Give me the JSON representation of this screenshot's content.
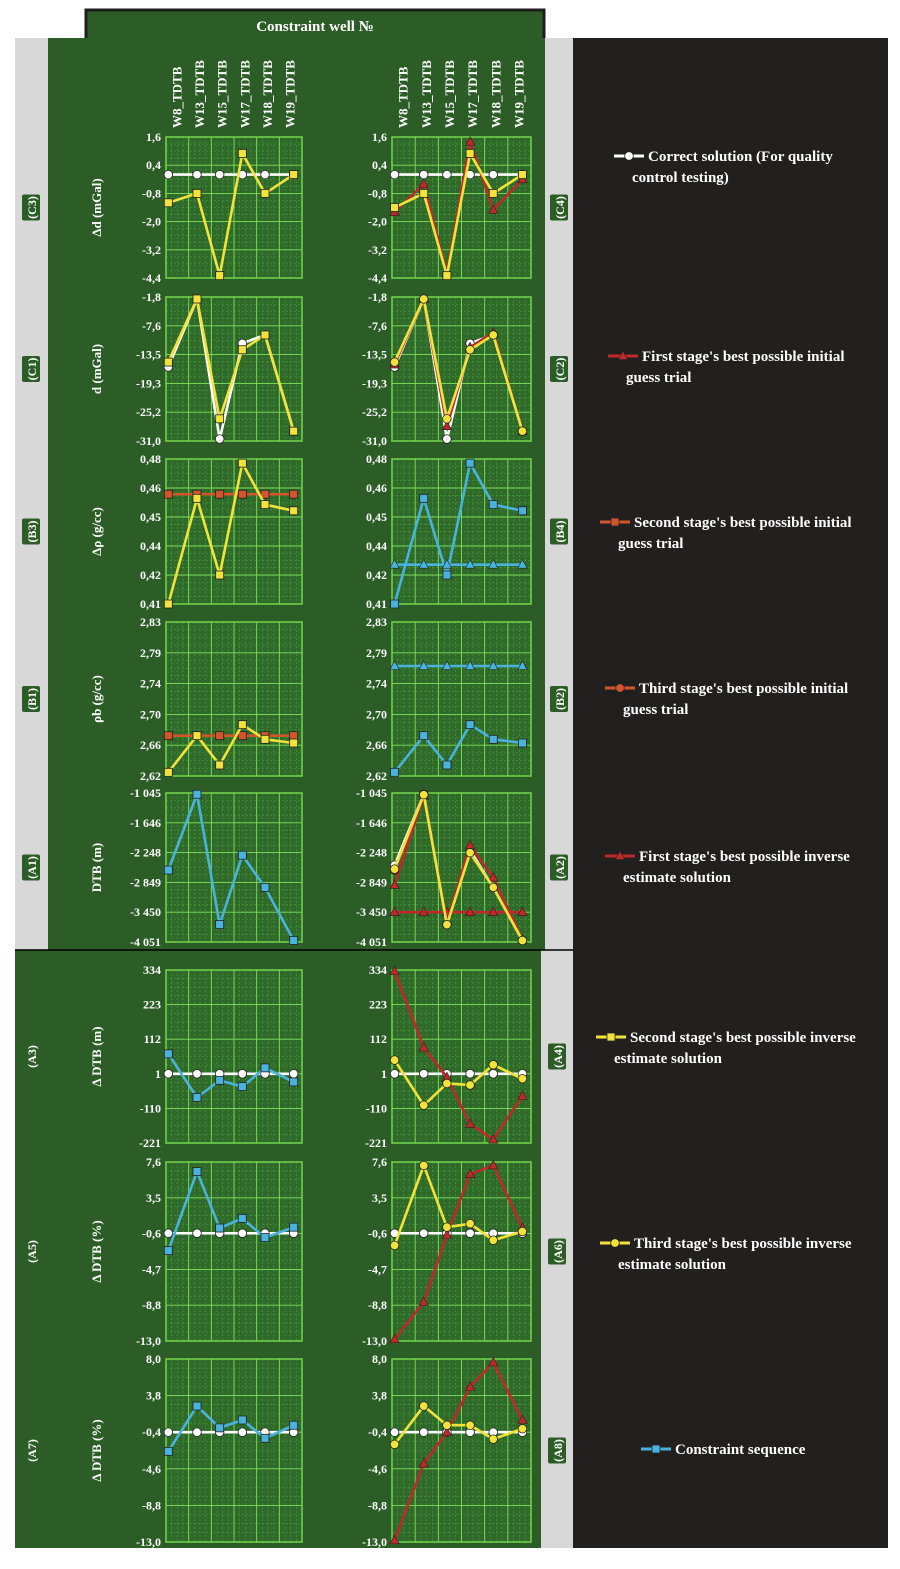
{
  "header": {
    "title": "Constraint well №"
  },
  "wells": [
    "W8_TDTB",
    "W13_TDTB",
    "W15_TDTB",
    "W17_TDTB",
    "W18_TDTB",
    "W19_TDTB"
  ],
  "legend": [
    {
      "key": "correct",
      "label": [
        "Correct solution (For quality",
        "control testing)"
      ],
      "color": "#ffffff",
      "marker": "circle"
    },
    {
      "key": "s1_init",
      "label": [
        "First stage's best possible initial",
        "guess trial"
      ],
      "color": "#c0282a",
      "marker": "triangle"
    },
    {
      "key": "s2_init",
      "label": [
        "Second stage's best possible initial",
        "guess trial"
      ],
      "color": "#d2552b",
      "marker": "square"
    },
    {
      "key": "s3_init",
      "label": [
        "Third stage's best possible initial",
        "guess trial"
      ],
      "color": "#d2552b",
      "marker": "circle"
    },
    {
      "key": "s1_inv",
      "label": [
        "First stage's best possible inverse",
        "estimate solution"
      ],
      "color": "#c0282a",
      "marker": "triangle"
    },
    {
      "key": "s2_inv",
      "label": [
        "Second stage's best possible inverse",
        "estimate solution"
      ],
      "color": "#f2e33a",
      "marker": "square"
    },
    {
      "key": "s3_inv",
      "label": [
        "Third stage's best possible inverse",
        "estimate solution"
      ],
      "color": "#f2e33a",
      "marker": "circle"
    },
    {
      "key": "constraint",
      "label": [
        "Constraint sequence"
      ],
      "color": "#4ab3dd",
      "marker": "square"
    }
  ],
  "chart_data": [
    {
      "id": "C3",
      "type": "line",
      "ylabel": "Δd (mGal)",
      "ylim": [
        -4.4,
        1.6
      ],
      "yticks": [
        "1,6",
        "0,4",
        "-0,8",
        "-2,0",
        "-3,2",
        "-4,4"
      ],
      "series": [
        {
          "key": "correct",
          "values": [
            0.0,
            0.0,
            0.0,
            0.0,
            0.0,
            0.0
          ]
        },
        {
          "key": "s2_inv",
          "values": [
            -1.2,
            -0.8,
            -4.3,
            0.9,
            -0.8,
            0.0
          ]
        }
      ]
    },
    {
      "id": "C4",
      "type": "line",
      "ylabel": "",
      "ylim": [
        -4.4,
        1.6
      ],
      "yticks": [
        "1,6",
        "0,4",
        "-0,8",
        "-2,0",
        "-3,2",
        "-4,4"
      ],
      "series": [
        {
          "key": "correct",
          "values": [
            0.0,
            0.0,
            0.0,
            0.0,
            0.0,
            0.0
          ]
        },
        {
          "key": "s1_inv",
          "values": [
            -1.6,
            -0.4,
            -4.2,
            1.4,
            -1.5,
            -0.2
          ]
        },
        {
          "key": "s2_inv",
          "values": [
            -1.4,
            -0.8,
            -4.3,
            0.9,
            -0.8,
            0.0
          ]
        }
      ]
    },
    {
      "id": "C1",
      "type": "line",
      "ylabel": "d (mGal)",
      "ylim": [
        -31.0,
        -1.8
      ],
      "yticks": [
        "-1,8",
        "-7,6",
        "-13,5",
        "-19,3",
        "-25,2",
        "-31,0"
      ],
      "series": [
        {
          "key": "correct",
          "values": [
            -16.0,
            -2.2,
            -30.6,
            -11.2,
            -9.5,
            -29.0
          ]
        },
        {
          "key": "s2_inv",
          "values": [
            -15.0,
            -2.2,
            -26.5,
            -12.5,
            -9.5,
            -29.0
          ]
        }
      ]
    },
    {
      "id": "C2",
      "type": "line",
      "ylabel": "",
      "ylim": [
        -31.0,
        -1.8
      ],
      "yticks": [
        "-1,8",
        "-7,6",
        "-13,5",
        "-19,3",
        "-25,2",
        "-31,0"
      ],
      "series": [
        {
          "key": "correct",
          "values": [
            -16.0,
            -2.2,
            -30.6,
            -11.2,
            -9.5,
            -29.0
          ]
        },
        {
          "key": "s1_inv",
          "values": [
            -15.5,
            -2.2,
            -28.0,
            -12.0,
            -9.0,
            -29.0
          ]
        },
        {
          "key": "s3_inv",
          "values": [
            -15.0,
            -2.2,
            -26.5,
            -12.5,
            -9.5,
            -29.0
          ]
        }
      ]
    },
    {
      "id": "B3",
      "type": "line",
      "ylabel": "Δρ (g/cc)",
      "ylim": [
        0.41,
        0.48
      ],
      "yticks": [
        "0,48",
        "0,46",
        "0,45",
        "0,44",
        "0,42",
        "0,41"
      ],
      "series": [
        {
          "key": "s2_init",
          "values": [
            0.463,
            0.463,
            0.463,
            0.463,
            0.463,
            0.463
          ]
        },
        {
          "key": "s2_inv",
          "values": [
            0.41,
            0.461,
            0.424,
            0.478,
            0.458,
            0.455
          ]
        }
      ]
    },
    {
      "id": "B4",
      "type": "line",
      "ylabel": "",
      "ylim": [
        0.41,
        0.48
      ],
      "yticks": [
        "0,48",
        "0,46",
        "0,45",
        "0,44",
        "0,42",
        "0,41"
      ],
      "series": [
        {
          "key": "constraint",
          "values": [
            0.41,
            0.461,
            0.424,
            0.478,
            0.458,
            0.455
          ]
        },
        {
          "key": "constraint",
          "marker": "triangle",
          "values": [
            0.429,
            0.429,
            0.429,
            0.429,
            0.429,
            0.429
          ]
        }
      ]
    },
    {
      "id": "B1",
      "type": "line",
      "ylabel": "ρb (g/cc)",
      "ylim": [
        2.62,
        2.83
      ],
      "yticks": [
        "2,83",
        "2,79",
        "2,74",
        "2,70",
        "2,66",
        "2,62"
      ],
      "series": [
        {
          "key": "s2_init",
          "values": [
            2.675,
            2.675,
            2.675,
            2.675,
            2.675,
            2.675
          ]
        },
        {
          "key": "s2_inv",
          "values": [
            2.625,
            2.675,
            2.635,
            2.69,
            2.67,
            2.665
          ]
        }
      ]
    },
    {
      "id": "B2",
      "type": "line",
      "ylabel": "",
      "ylim": [
        2.62,
        2.83
      ],
      "yticks": [
        "2,83",
        "2,79",
        "2,74",
        "2,70",
        "2,66",
        "2,62"
      ],
      "series": [
        {
          "key": "constraint",
          "marker": "triangle",
          "values": [
            2.77,
            2.77,
            2.77,
            2.77,
            2.77,
            2.77
          ]
        },
        {
          "key": "constraint",
          "values": [
            2.625,
            2.675,
            2.635,
            2.69,
            2.67,
            2.665
          ]
        }
      ]
    },
    {
      "id": "A1",
      "type": "line",
      "ylabel": "DTB (m)",
      "ylim": [
        -4051,
        -1045
      ],
      "yticks": [
        "-1 045",
        "-1 646",
        "-2 248",
        "-2 849",
        "-3 450",
        "-4 051"
      ],
      "series": [
        {
          "key": "constraint",
          "values": [
            -2600,
            -1070,
            -3700,
            -2300,
            -2950,
            -4020
          ]
        }
      ]
    },
    {
      "id": "A2",
      "type": "line",
      "ylabel": "",
      "ylim": [
        -4051,
        -1045
      ],
      "yticks": [
        "-1 045",
        "-1 646",
        "-2 248",
        "-2 849",
        "-3 450",
        "-4 051"
      ],
      "series": [
        {
          "key": "correct",
          "values": [
            -2500,
            -1070,
            -3700,
            -2200,
            -2950,
            -4020
          ]
        },
        {
          "key": "s1_init",
          "values": [
            -3450,
            -3450,
            -3450,
            -3450,
            -3450,
            -3450
          ]
        },
        {
          "key": "s1_inv",
          "values": [
            -2900,
            -1100,
            -3650,
            -2100,
            -2750,
            -4000
          ]
        },
        {
          "key": "s3_init",
          "values": [
            -2600,
            -1070,
            -3700,
            -2250,
            -2950,
            -4020
          ]
        },
        {
          "key": "s3_inv",
          "values": [
            -2580,
            -1080,
            -3700,
            -2250,
            -2950,
            -4020
          ]
        }
      ]
    },
    {
      "id": "A3",
      "type": "line",
      "ylabel": "Δ DTB (m)",
      "ylim": [
        -221,
        334
      ],
      "yticks": [
        "334",
        "223",
        "112",
        "1",
        "-110",
        "-221"
      ],
      "series": [
        {
          "key": "correct",
          "values": [
            1,
            1,
            1,
            1,
            1,
            1
          ]
        },
        {
          "key": "constraint",
          "values": [
            65,
            -75,
            -20,
            -40,
            20,
            -25
          ]
        }
      ]
    },
    {
      "id": "A4",
      "type": "line",
      "ylabel": "",
      "ylim": [
        -221,
        334
      ],
      "yticks": [
        "334",
        "223",
        "112",
        "1",
        "-110",
        "-221"
      ],
      "series": [
        {
          "key": "correct",
          "values": [
            1,
            1,
            1,
            1,
            1,
            1
          ]
        },
        {
          "key": "s1_inv",
          "values": [
            330,
            85,
            -10,
            -160,
            -210,
            -70
          ]
        },
        {
          "key": "s3_inv",
          "values": [
            45,
            -100,
            -30,
            -35,
            30,
            -15
          ]
        }
      ]
    },
    {
      "id": "A5",
      "type": "line",
      "ylabel": "Δ DTB (%)",
      "ylim": [
        -13.0,
        7.6
      ],
      "yticks": [
        "7,6",
        "3,5",
        "-0,6",
        "-4,7",
        "-8,8",
        "-13,0"
      ],
      "series": [
        {
          "key": "correct",
          "values": [
            -0.6,
            -0.6,
            -0.6,
            -0.6,
            -0.6,
            -0.6
          ]
        },
        {
          "key": "constraint",
          "values": [
            -2.6,
            6.5,
            0.0,
            1.1,
            -1.1,
            0.1
          ]
        }
      ]
    },
    {
      "id": "A6",
      "type": "line",
      "ylabel": "",
      "ylim": [
        -13.0,
        7.6
      ],
      "yticks": [
        "7,6",
        "3,5",
        "-0,6",
        "-4,7",
        "-8,8",
        "-13,0"
      ],
      "series": [
        {
          "key": "correct",
          "values": [
            -0.6,
            -0.6,
            -0.6,
            -0.6,
            -0.6,
            -0.6
          ]
        },
        {
          "key": "s1_inv",
          "values": [
            -12.8,
            -8.5,
            -0.8,
            6.2,
            7.2,
            0.0
          ]
        },
        {
          "key": "s3_inv",
          "values": [
            -2.0,
            7.2,
            0.1,
            0.5,
            -1.4,
            -0.4
          ]
        }
      ]
    },
    {
      "id": "A7",
      "type": "line",
      "ylabel": "Δ DTB (%)",
      "ylim": [
        -13.0,
        8.0
      ],
      "yticks": [
        "8,0",
        "3,8",
        "-0,4",
        "-4,6",
        "-8,8",
        "-13,0"
      ],
      "series": [
        {
          "key": "correct",
          "values": [
            -0.4,
            -0.4,
            -0.4,
            -0.4,
            -0.4,
            -0.4
          ]
        },
        {
          "key": "constraint",
          "values": [
            -2.6,
            2.6,
            0.1,
            1.0,
            -1.1,
            0.4
          ]
        }
      ]
    },
    {
      "id": "A8",
      "type": "line",
      "ylabel": "",
      "ylim": [
        -13.0,
        8.0
      ],
      "yticks": [
        "8,0",
        "3,8",
        "-0,4",
        "-4,6",
        "-8,8",
        "-13,0"
      ],
      "series": [
        {
          "key": "correct",
          "values": [
            -0.4,
            -0.4,
            -0.4,
            -0.4,
            -0.4,
            -0.4
          ]
        },
        {
          "key": "s1_inv",
          "values": [
            -12.8,
            -4.0,
            -0.4,
            4.8,
            7.6,
            1.0
          ]
        },
        {
          "key": "s3_inv",
          "values": [
            -1.8,
            2.6,
            0.4,
            0.4,
            -1.2,
            0.0
          ]
        }
      ]
    }
  ]
}
